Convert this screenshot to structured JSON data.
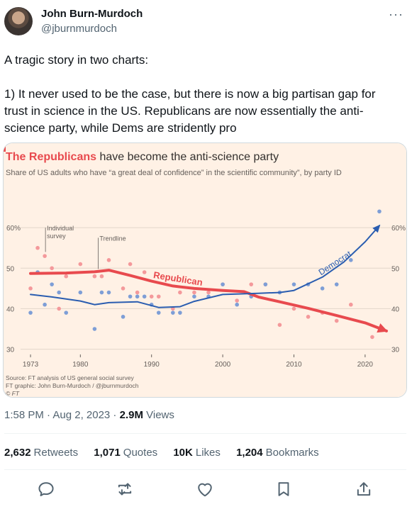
{
  "author": {
    "name": "John Burn-Murdoch",
    "handle": "@jburnmurdoch"
  },
  "more_label": "···",
  "tweet": {
    "text": "A tragic story in two charts:\n\n1) It never used to be the case, but there is now a big partisan gap for trust in science in the US. Republicans are now essentially the anti-science party, while Dems are stridently pro"
  },
  "meta": {
    "time": "1:58 PM · Aug 2, 2023 · ",
    "views_count": "2.9M",
    "views_label": " Views"
  },
  "stats": {
    "retweets_count": "2,632",
    "retweets_label": "Retweets",
    "quotes_count": "1,071",
    "quotes_label": "Quotes",
    "likes_count": "10K",
    "likes_label": "Likes",
    "bookmarks_count": "1,204",
    "bookmarks_label": "Bookmarks"
  },
  "icons": [
    "reply-icon",
    "retweet-icon",
    "like-icon",
    "bookmark-icon",
    "share-icon"
  ],
  "colors": {
    "republican": "#e84a4e",
    "democrat": "#2a5db0",
    "republican_dot": "#f4999b",
    "democrat_dot": "#7e9ed6",
    "chart_bg": "#fff1e5"
  },
  "chart_data": {
    "type": "line",
    "title_highlight": "The Republicans",
    "title_rest": " have become the anti-science party",
    "subtitle": "Share of US adults who have “a great deal of confidence” in the scientific community”, by party ID",
    "xticks": [
      1973,
      1980,
      1990,
      2000,
      2010,
      2020
    ],
    "yticks": [
      30,
      40,
      50,
      60
    ],
    "ytick_labels_left": [
      "30",
      "40",
      "50",
      "60%"
    ],
    "ytick_labels_right": [
      "30",
      "40",
      "50",
      "60%"
    ],
    "xlim": [
      1972,
      2023
    ],
    "ylim": [
      28,
      70
    ],
    "annotations": {
      "individual": "Individual\nsurvey",
      "trendline": "Trendline"
    },
    "series": [
      {
        "name": "Republican",
        "trend": [
          [
            1973,
            48.7
          ],
          [
            1978,
            48.8
          ],
          [
            1982,
            49.1
          ],
          [
            1984,
            49.5
          ],
          [
            1987,
            48.2
          ],
          [
            1990,
            46.8
          ],
          [
            1993,
            45.6
          ],
          [
            1996,
            45.0
          ],
          [
            2000,
            44.5
          ],
          [
            2003,
            44.2
          ],
          [
            2005,
            42.9
          ],
          [
            2008,
            41.7
          ],
          [
            2012,
            40.1
          ],
          [
            2016,
            38.3
          ],
          [
            2020,
            36.5
          ],
          [
            2023,
            34.5
          ]
        ],
        "points": [
          [
            1973,
            45
          ],
          [
            1974,
            55
          ],
          [
            1975,
            53
          ],
          [
            1976,
            50
          ],
          [
            1977,
            40
          ],
          [
            1978,
            48
          ],
          [
            1980,
            51
          ],
          [
            1982,
            48
          ],
          [
            1983,
            48
          ],
          [
            1984,
            52
          ],
          [
            1986,
            45
          ],
          [
            1987,
            51
          ],
          [
            1988,
            44
          ],
          [
            1989,
            49
          ],
          [
            1990,
            43
          ],
          [
            1991,
            43
          ],
          [
            1993,
            40
          ],
          [
            1994,
            44
          ],
          [
            1996,
            44
          ],
          [
            1998,
            44
          ],
          [
            2000,
            46
          ],
          [
            2002,
            42
          ],
          [
            2004,
            46
          ],
          [
            2006,
            46
          ],
          [
            2008,
            36
          ],
          [
            2010,
            40
          ],
          [
            2012,
            38
          ],
          [
            2014,
            39
          ],
          [
            2016,
            37
          ],
          [
            2018,
            41
          ],
          [
            2021,
            33
          ]
        ]
      },
      {
        "name": "Democrat",
        "trend": [
          [
            1973,
            43.5
          ],
          [
            1976,
            42.9
          ],
          [
            1980,
            41.9
          ],
          [
            1982,
            41.0
          ],
          [
            1984,
            41.5
          ],
          [
            1988,
            41.7
          ],
          [
            1991,
            40.3
          ],
          [
            1994,
            40.5
          ],
          [
            1996,
            41.8
          ],
          [
            2000,
            43.5
          ],
          [
            2005,
            43.8
          ],
          [
            2008,
            44.0
          ],
          [
            2010,
            44.5
          ],
          [
            2014,
            47.8
          ],
          [
            2017,
            51.5
          ],
          [
            2020,
            56.5
          ],
          [
            2022,
            60.5
          ]
        ],
        "points": [
          [
            1973,
            39
          ],
          [
            1974,
            49
          ],
          [
            1975,
            41
          ],
          [
            1976,
            46
          ],
          [
            1977,
            44
          ],
          [
            1978,
            39
          ],
          [
            1980,
            44
          ],
          [
            1982,
            35
          ],
          [
            1983,
            44
          ],
          [
            1984,
            44
          ],
          [
            1986,
            38
          ],
          [
            1987,
            43
          ],
          [
            1988,
            43
          ],
          [
            1989,
            43
          ],
          [
            1990,
            41
          ],
          [
            1991,
            39
          ],
          [
            1993,
            39
          ],
          [
            1994,
            39
          ],
          [
            1996,
            43
          ],
          [
            1998,
            43
          ],
          [
            2000,
            46
          ],
          [
            2002,
            41
          ],
          [
            2004,
            43
          ],
          [
            2006,
            46
          ],
          [
            2008,
            44
          ],
          [
            2010,
            46
          ],
          [
            2012,
            46
          ],
          [
            2014,
            45
          ],
          [
            2016,
            46
          ],
          [
            2018,
            52
          ],
          [
            2022,
            64
          ]
        ]
      }
    ],
    "source": "Source: FT analysis of US general social survey",
    "credit": "FT graphic: John Burn-Murdoch / @jburnmurdoch",
    "logo": "© FT"
  }
}
